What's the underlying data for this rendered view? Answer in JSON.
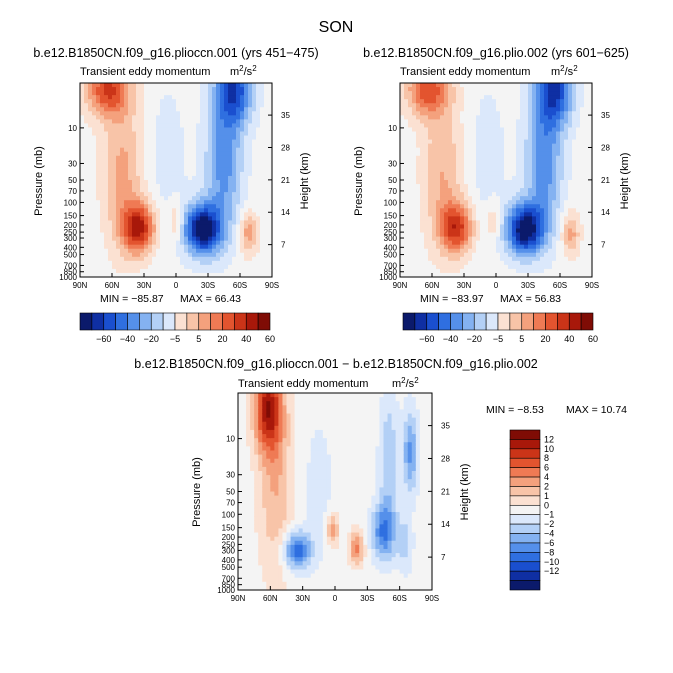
{
  "title": "SON",
  "colors": {
    "neg": [
      "#0b1a6b",
      "#0f2fa3",
      "#1a4fcf",
      "#2f6fe0",
      "#5590ea",
      "#84b2f1",
      "#b3d0f6",
      "#dbe8fb"
    ],
    "zero": "#f4f4f4",
    "pos": [
      "#fbe1d2",
      "#f8c4a8",
      "#f4a17d",
      "#ef7a54",
      "#e3542f",
      "#cb3418",
      "#a8180a",
      "#7f0c05"
    ]
  },
  "chart_data": [
    {
      "id": "panel1",
      "type": "contour",
      "title": "b.e12.B1850CN.f09_g16.pliocc​n.001 (yrs 451−475)",
      "subtitle": "Transient eddy momentum",
      "units_base": "m",
      "units_sup1": "2",
      "units_mid": "/s",
      "units_sup2": "2",
      "ylabel": "Pressure (mb)",
      "y2label": "Height (km)",
      "xticks": [
        "90N",
        "60N",
        "30N",
        "0",
        "30S",
        "60S",
        "90S"
      ],
      "yticks": [
        "10",
        "30",
        "50",
        "70",
        "100",
        "150",
        "200",
        "250",
        "300",
        "400",
        "500",
        "700",
        "850",
        "1000"
      ],
      "y2ticks": [
        "35",
        "28",
        "21",
        "14",
        "7"
      ],
      "min_label": "MIN = −85.87",
      "max_label": "MAX = 66.43",
      "levels_step": 10,
      "colorbar": [
        "−60",
        "−40",
        "−20",
        "−5",
        "5",
        "20",
        "40",
        "60"
      ],
      "features": [
        {
          "lat": 64,
          "p": 3,
          "value": 55,
          "latw": 14,
          "lpw": 0.6
        },
        {
          "lat": 50,
          "p": 40,
          "value": 28,
          "latw": 13,
          "lpw": 1.6
        },
        {
          "lat": 35,
          "p": 220,
          "value": 66,
          "latw": 11,
          "lpw": 0.55
        },
        {
          "lat": 0,
          "p": 180,
          "value": 22,
          "latw": 5,
          "lpw": 0.45
        },
        {
          "lat": -25,
          "p": 230,
          "value": -86,
          "latw": 12,
          "lpw": 0.55
        },
        {
          "lat": -45,
          "p": 30,
          "value": -40,
          "latw": 12,
          "lpw": 1.5
        },
        {
          "lat": -55,
          "p": 3,
          "value": -60,
          "latw": 12,
          "lpw": 0.8
        },
        {
          "lat": -68,
          "p": 260,
          "value": 32,
          "latw": 6,
          "lpw": 0.45
        },
        {
          "lat": 8,
          "p": 30,
          "value": -9,
          "latw": 14,
          "lpw": 2.0
        }
      ]
    },
    {
      "id": "panel2",
      "type": "contour",
      "title": "b.e12.B1850CN.f09_g16.plio.002 (yrs 601−625)",
      "subtitle": "Transient eddy momentum",
      "units_base": "m",
      "units_sup1": "2",
      "units_mid": "/s",
      "units_sup2": "2",
      "ylabel": "Pressure (mb)",
      "y2label": "Height (km)",
      "xticks": [
        "90N",
        "60N",
        "30N",
        "0",
        "30S",
        "60S",
        "90S"
      ],
      "yticks": [
        "10",
        "30",
        "50",
        "70",
        "100",
        "150",
        "200",
        "250",
        "300",
        "400",
        "500",
        "700",
        "850",
        "1000"
      ],
      "y2ticks": [
        "35",
        "28",
        "21",
        "14",
        "7"
      ],
      "min_label": "MIN = −83.97",
      "max_label": "MAX = 56.83",
      "levels_step": 10,
      "colorbar": [
        "−60",
        "−40",
        "−20",
        "−5",
        "5",
        "20",
        "40",
        "60"
      ],
      "features": [
        {
          "lat": 64,
          "p": 3,
          "value": 50,
          "latw": 14,
          "lpw": 0.6
        },
        {
          "lat": 50,
          "p": 40,
          "value": 25,
          "latw": 13,
          "lpw": 1.6
        },
        {
          "lat": 37,
          "p": 220,
          "value": 57,
          "latw": 11,
          "lpw": 0.55
        },
        {
          "lat": 2,
          "p": 180,
          "value": 18,
          "latw": 5,
          "lpw": 0.45
        },
        {
          "lat": -27,
          "p": 230,
          "value": -84,
          "latw": 12,
          "lpw": 0.55
        },
        {
          "lat": -45,
          "p": 30,
          "value": -42,
          "latw": 12,
          "lpw": 1.5
        },
        {
          "lat": -55,
          "p": 3,
          "value": -62,
          "latw": 12,
          "lpw": 0.8
        },
        {
          "lat": -70,
          "p": 260,
          "value": 30,
          "latw": 6,
          "lpw": 0.45
        },
        {
          "lat": 8,
          "p": 30,
          "value": -9,
          "latw": 14,
          "lpw": 2.0
        }
      ]
    },
    {
      "id": "panel3",
      "type": "contour",
      "title": "b.e12.B1850CN.f09_g16.pliocc​n.001 − b.e12.B1850CN.f09_g16.plio.002",
      "subtitle": "Transient eddy momentum",
      "units_base": "m",
      "units_sup1": "2",
      "units_mid": "/s",
      "units_sup2": "2",
      "ylabel": "Pressure (mb)",
      "y2label": "Height (km)",
      "xticks": [
        "90N",
        "60N",
        "30N",
        "0",
        "30S",
        "60S",
        "90S"
      ],
      "yticks": [
        "10",
        "30",
        "50",
        "70",
        "100",
        "150",
        "200",
        "250",
        "300",
        "400",
        "500",
        "700",
        "850",
        "1000"
      ],
      "y2ticks": [
        "35",
        "28",
        "21",
        "14",
        "7"
      ],
      "min_label": "MIN = −8.53",
      "max_label": "MAX = 10.74",
      "levels_step": 1.6,
      "colorbar": [
        "12",
        "10",
        "8",
        "6",
        "4",
        "2",
        "1",
        "0",
        "−1",
        "−2",
        "−4",
        "−6",
        "−8",
        "−10",
        "−12"
      ],
      "features": [
        {
          "lat": 62,
          "p": 4,
          "value": 10.7,
          "latw": 9,
          "lpw": 0.9
        },
        {
          "lat": 55,
          "p": 40,
          "value": 4,
          "latw": 11,
          "lpw": 2.0
        },
        {
          "lat": 35,
          "p": 300,
          "value": -8.5,
          "latw": 9,
          "lpw": 0.4
        },
        {
          "lat": 2,
          "p": 160,
          "value": 5,
          "latw": 4,
          "lpw": 0.35
        },
        {
          "lat": -20,
          "p": 280,
          "value": 6,
          "latw": 5,
          "lpw": 0.35
        },
        {
          "lat": -45,
          "p": 170,
          "value": -7,
          "latw": 8,
          "lpw": 0.6
        },
        {
          "lat": -50,
          "p": 20,
          "value": -4,
          "latw": 6,
          "lpw": 1.4
        },
        {
          "lat": -70,
          "p": 15,
          "value": -6,
          "latw": 5,
          "lpw": 0.9
        },
        {
          "lat": -65,
          "p": 250,
          "value": -3,
          "latw": 5,
          "lpw": 0.6
        },
        {
          "lat": 15,
          "p": 40,
          "value": -1.5,
          "latw": 10,
          "lpw": 1.5
        }
      ]
    }
  ]
}
